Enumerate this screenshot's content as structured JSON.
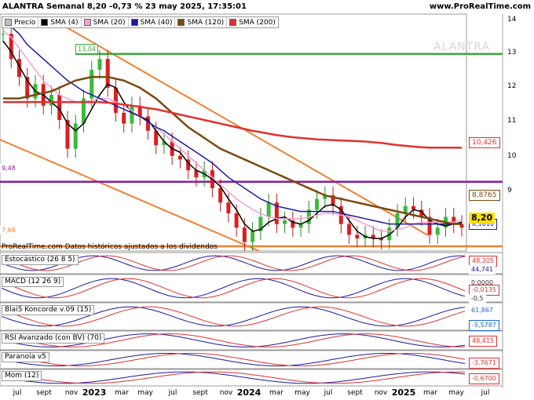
{
  "header": {
    "title": "ALANTRA Semanal 8,20 -0,73 % 23 may 2025, 17:35:01",
    "site": "www.ProRealTime.com"
  },
  "watermark": "ALANTRA",
  "legend": [
    {
      "label": "Precio",
      "color": "#c0c0c0"
    },
    {
      "label": "SMA (4)",
      "color": "#000000"
    },
    {
      "label": "SMA (20)",
      "color": "#f4a0d6"
    },
    {
      "label": "SMA (40)",
      "color": "#1a1aa0"
    },
    {
      "label": "SMA (120)",
      "color": "#7a4a10"
    },
    {
      "label": "SMA (200)",
      "color": "#e03030"
    }
  ],
  "level_labels": {
    "top": "13,04",
    "mid": "9,48",
    "low": "7,68"
  },
  "price_labels": {
    "a": "10,426",
    "b": "8,8765",
    "c": "8,1610",
    "d": "8,20"
  },
  "source_note": "ProRealTime.com  Datos históricos ajustados a los dividendos",
  "chart_data": {
    "type": "line",
    "title": "ALANTRA Semanal 8,20 -0,73 % 23 may 2025, 17:35:01",
    "y_ticks": [
      "14",
      "13",
      "12",
      "11",
      "10",
      "9"
    ],
    "ylim": [
      7.55,
      14.15
    ],
    "x_ticks": [
      "jul",
      "sept",
      "nov",
      "2023",
      "mar",
      "may",
      "jul",
      "sept",
      "nov",
      "2024",
      "mar",
      "may",
      "jul",
      "sept",
      "nov",
      "2025",
      "mar",
      "may",
      "jul"
    ],
    "horizontal_levels": [
      {
        "value": 13.04,
        "color": "#3aaa3a"
      },
      {
        "value": 9.48,
        "color": "#8a1aa0"
      },
      {
        "value": 7.68,
        "color": "#f08030"
      }
    ],
    "close_series": [
      13.6,
      12.9,
      12.4,
      11.8,
      12.2,
      11.6,
      11.9,
      11.2,
      10.4,
      11.1,
      11.8,
      12.6,
      12.9,
      12.1,
      11.4,
      11.1,
      11.6,
      11.3,
      10.9,
      10.5,
      10.6,
      10.2,
      10.1,
      9.8,
      9.6,
      9.8,
      9.3,
      8.9,
      8.6,
      8.2,
      7.8,
      8.1,
      8.5,
      8.9,
      8.3,
      8.4,
      8.2,
      8.3,
      8.7,
      9.0,
      9.1,
      8.8,
      8.3,
      8.0,
      7.9,
      8.0,
      7.9,
      7.85,
      8.2,
      8.6,
      8.8,
      8.7,
      8.5,
      8.0,
      8.2,
      8.5,
      8.3,
      8.2
    ],
    "series": [
      {
        "name": "SMA (4)",
        "values": [
          13.4,
          13.1,
          12.7,
          12.3,
          12.0,
          11.9,
          11.7,
          11.5,
          11.1,
          10.9,
          11.1,
          11.5,
          11.9,
          12.2,
          12.1,
          11.7,
          11.4,
          11.3,
          11.2,
          10.9,
          10.6,
          10.4,
          10.3,
          10.0,
          9.8,
          9.7,
          9.55,
          9.35,
          9.0,
          8.7,
          8.3,
          8.1,
          8.15,
          8.35,
          8.45,
          8.5,
          8.35,
          8.3,
          8.4,
          8.6,
          8.8,
          8.85,
          8.7,
          8.4,
          8.1,
          7.95,
          7.9,
          7.9,
          8.0,
          8.2,
          8.5,
          8.7,
          8.65,
          8.4,
          8.3,
          8.25,
          8.3,
          8.35
        ]
      },
      {
        "name": "SMA (20)",
        "values": [
          13.7,
          13.5,
          13.2,
          12.9,
          12.6,
          12.3,
          12.1,
          11.9,
          11.8,
          11.7,
          11.7,
          11.75,
          11.8,
          11.8,
          11.7,
          11.6,
          11.45,
          11.3,
          11.15,
          11.0,
          10.8,
          10.6,
          10.4,
          10.2,
          10.0,
          9.8,
          9.6,
          9.4,
          9.2,
          9.0,
          8.85,
          8.7,
          8.6,
          8.5,
          8.45,
          8.45,
          8.45,
          8.45,
          8.5,
          8.55,
          8.6,
          8.6,
          8.55,
          8.5,
          8.4,
          8.3,
          8.2,
          8.1,
          8.1,
          8.15,
          8.2,
          8.3,
          8.35,
          8.35,
          8.35,
          8.35,
          8.35,
          8.4
        ]
      },
      {
        "name": "SMA (40)",
        "values": [
          14.0,
          13.8,
          13.6,
          13.3,
          13.1,
          12.9,
          12.7,
          12.5,
          12.3,
          12.15,
          12.0,
          11.9,
          11.8,
          11.7,
          11.6,
          11.5,
          11.4,
          11.3,
          11.15,
          11.0,
          10.9,
          10.75,
          10.6,
          10.45,
          10.3,
          10.15,
          10.0,
          9.8,
          9.6,
          9.45,
          9.3,
          9.15,
          9.0,
          8.9,
          8.8,
          8.75,
          8.7,
          8.65,
          8.65,
          8.65,
          8.65,
          8.65,
          8.6,
          8.55,
          8.5,
          8.45,
          8.4,
          8.35,
          8.3,
          8.3,
          8.3,
          8.3,
          8.3,
          8.3,
          8.3,
          8.3,
          8.3,
          8.3
        ]
      },
      {
        "name": "SMA (120)",
        "values": [
          11.8,
          11.8,
          11.8,
          11.85,
          11.9,
          11.95,
          12.0,
          12.1,
          12.2,
          12.3,
          12.35,
          12.4,
          12.4,
          12.4,
          12.35,
          12.3,
          12.2,
          12.1,
          11.95,
          11.8,
          11.6,
          11.4,
          11.2,
          11.0,
          10.85,
          10.7,
          10.55,
          10.4,
          10.3,
          10.2,
          10.1,
          10.0,
          9.9,
          9.8,
          9.7,
          9.6,
          9.5,
          9.4,
          9.3,
          9.2,
          9.1,
          9.05,
          9.0,
          8.95,
          8.9,
          8.85,
          8.8,
          8.75,
          8.7,
          8.65,
          8.6,
          8.55,
          8.5,
          8.45,
          8.4,
          8.35,
          8.3,
          8.3
        ]
      },
      {
        "name": "SMA (200)",
        "values": [
          11.7,
          11.7,
          11.7,
          11.7,
          11.7,
          11.7,
          11.7,
          11.7,
          11.7,
          11.7,
          11.7,
          11.7,
          11.7,
          11.68,
          11.66,
          11.63,
          11.6,
          11.57,
          11.53,
          11.5,
          11.45,
          11.4,
          11.35,
          11.3,
          11.25,
          11.2,
          11.15,
          11.1,
          11.05,
          11.0,
          10.95,
          10.9,
          10.86,
          10.82,
          10.78,
          10.75,
          10.72,
          10.7,
          10.68,
          10.66,
          10.65,
          10.64,
          10.63,
          10.62,
          10.61,
          10.6,
          10.58,
          10.56,
          10.53,
          10.5,
          10.48,
          10.46,
          10.44,
          10.43,
          10.43,
          10.43,
          10.43,
          10.426
        ]
      }
    ]
  },
  "indicators": [
    {
      "name": "Estocástico (26 8 5)",
      "labels": [
        "48,205",
        "44,741"
      ]
    },
    {
      "name": "MACD (12 26 9)",
      "labels": [
        "0,0000",
        "-0,0135",
        "-0,5"
      ]
    },
    {
      "name": "Blai5 Koncorde v.09 (15)",
      "labels": [
        "61,867",
        "-5,5787"
      ]
    },
    {
      "name": "RSI Avanzado (con BV) (70)",
      "labels": [
        "48,415"
      ]
    },
    {
      "name": "Paranoia v5",
      "labels": [
        "-3,7671"
      ]
    },
    {
      "name": "Mom (12)",
      "labels": [
        "-0,6700"
      ]
    }
  ]
}
